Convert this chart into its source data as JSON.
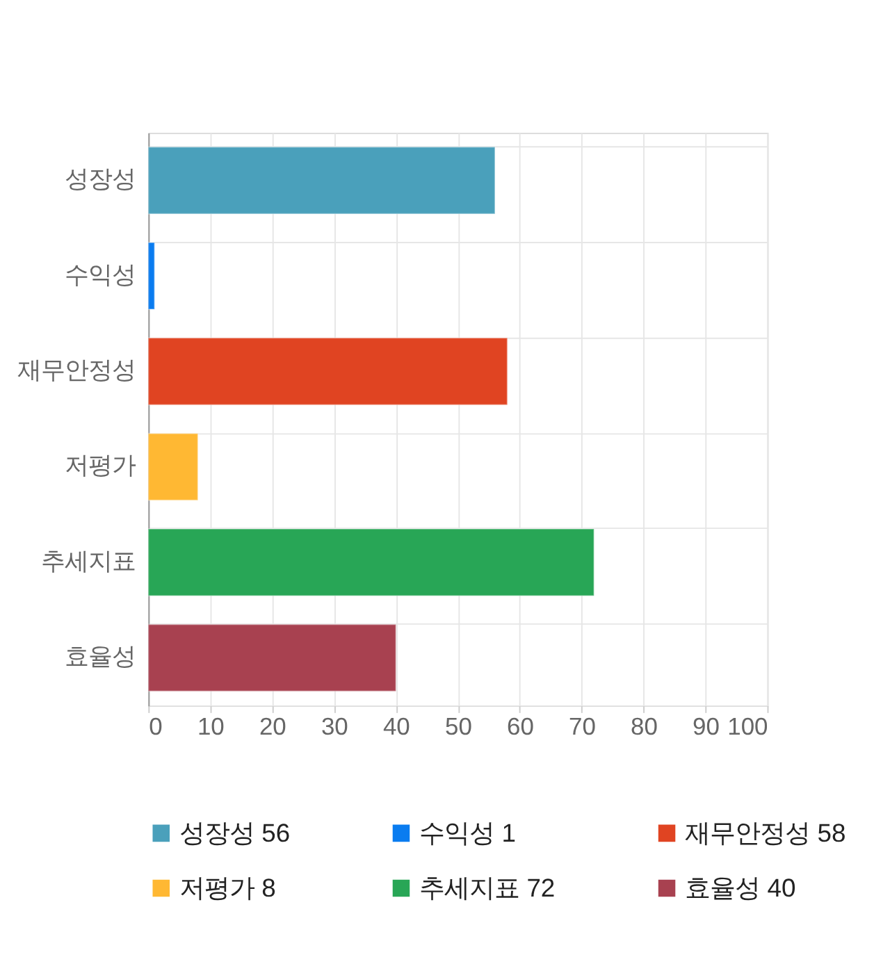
{
  "chart_data": {
    "type": "bar",
    "orientation": "horizontal",
    "categories": [
      "성장성",
      "수익성",
      "재무안정성",
      "저평가",
      "추세지표",
      "효율성"
    ],
    "series": [
      {
        "name": "성장성 56",
        "color": "#4aa0bb",
        "values": [
          56,
          null,
          null,
          null,
          null,
          null
        ]
      },
      {
        "name": "수익성 1",
        "color": "#0a7cf0",
        "values": [
          null,
          1,
          null,
          null,
          null,
          null
        ]
      },
      {
        "name": "재무안정성 58",
        "color": "#e04422",
        "values": [
          null,
          null,
          58,
          null,
          null,
          null
        ]
      },
      {
        "name": "저평가 8",
        "color": "#ffb833",
        "values": [
          null,
          null,
          null,
          8,
          null,
          null
        ]
      },
      {
        "name": "추세지표 72",
        "color": "#28a656",
        "values": [
          null,
          null,
          null,
          null,
          72,
          null
        ]
      },
      {
        "name": "효율성 40",
        "color": "#a84150",
        "values": [
          null,
          null,
          null,
          null,
          null,
          40
        ]
      }
    ],
    "xlim": [
      0,
      100
    ],
    "xticks": [
      0,
      10,
      20,
      30,
      40,
      50,
      60,
      70,
      80,
      90,
      100
    ],
    "grid": true,
    "legend": "bottom"
  }
}
